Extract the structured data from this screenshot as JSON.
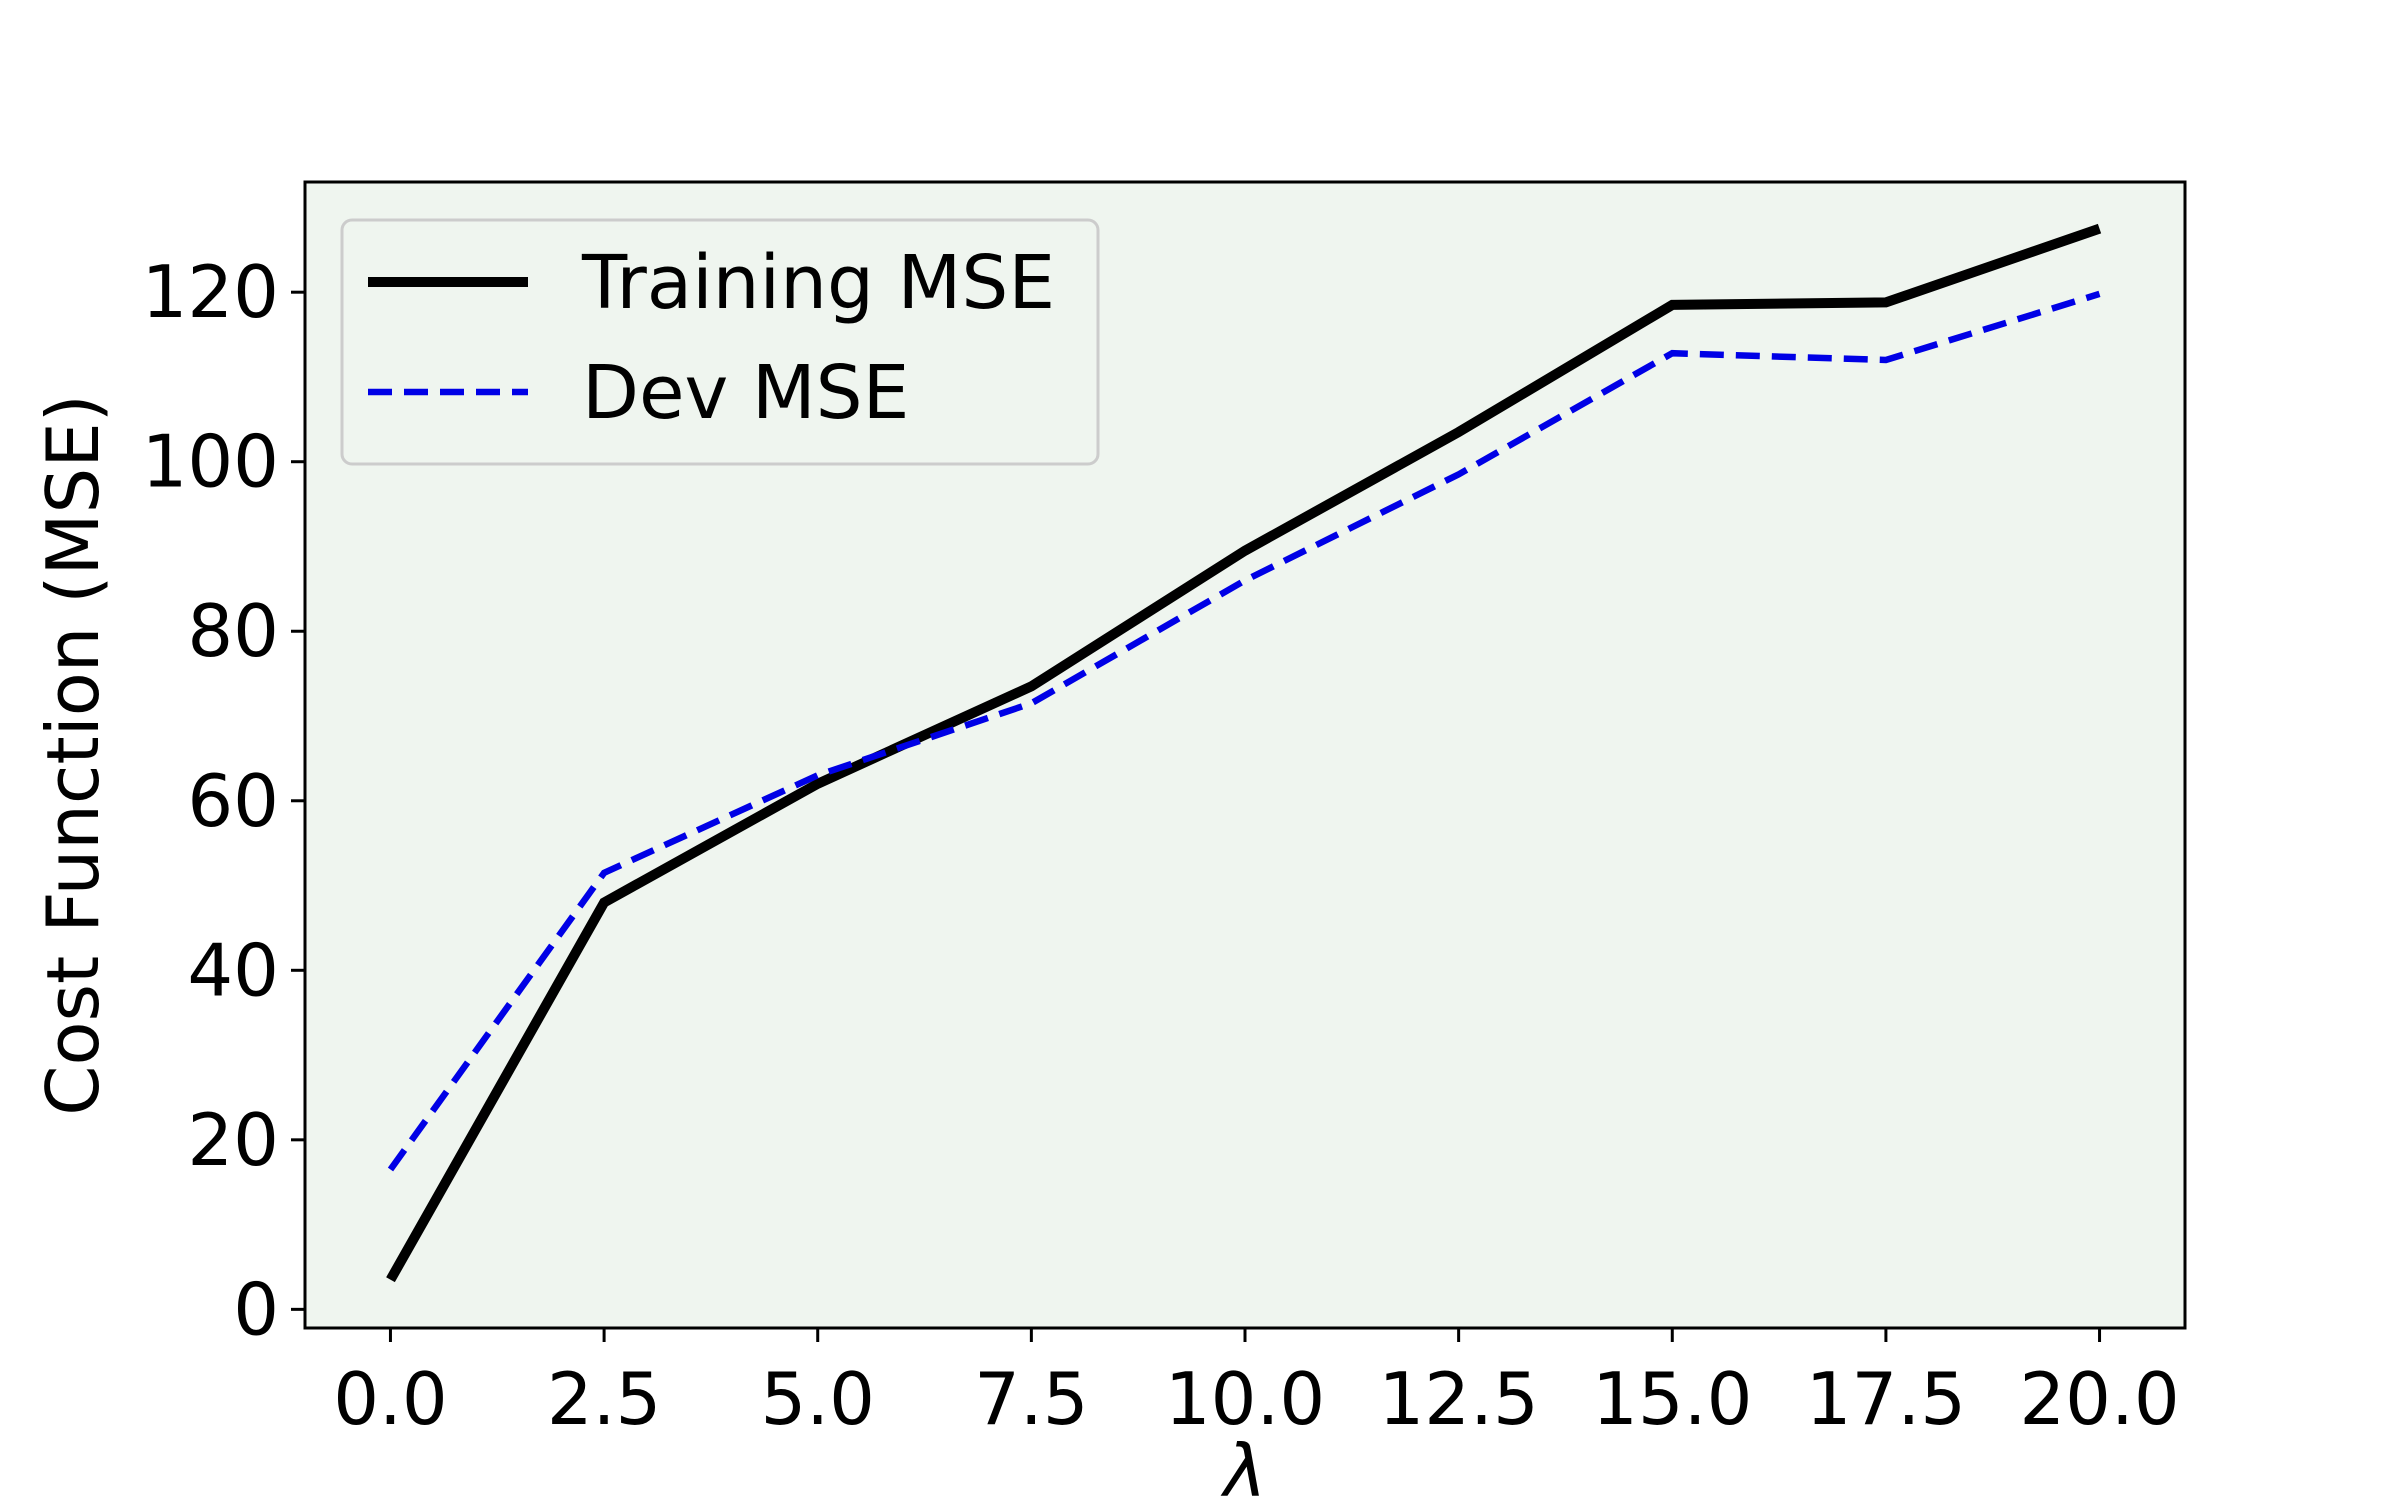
{
  "chart_data": {
    "type": "line",
    "title": "",
    "xlabel": "λ",
    "ylabel": "Cost Function (MSE)",
    "x": [
      0.0,
      2.5,
      5.0,
      7.5,
      10.0,
      12.5,
      15.0,
      17.5,
      20.0
    ],
    "xlim": [
      -1.0,
      21.0
    ],
    "ylim": [
      -2.2,
      133.0
    ],
    "xticks": [
      0.0,
      2.5,
      5.0,
      7.5,
      10.0,
      12.5,
      15.0,
      17.5,
      20.0
    ],
    "xtick_labels": [
      "0.0",
      "2.5",
      "5.0",
      "7.5",
      "10.0",
      "12.5",
      "15.0",
      "17.5",
      "20.0"
    ],
    "yticks": [
      0,
      20,
      40,
      60,
      80,
      100,
      120
    ],
    "ytick_labels": [
      "0",
      "20",
      "40",
      "60",
      "80",
      "100",
      "120"
    ],
    "grid": false,
    "legend_position": "top-left",
    "plot_background": "#eff5ef",
    "series": [
      {
        "name": "Training MSE",
        "values": [
          3.5,
          48.0,
          62.0,
          73.5,
          89.5,
          103.5,
          118.5,
          118.8,
          127.5
        ],
        "color": "#000000",
        "style": "solid"
      },
      {
        "name": "Dev MSE",
        "values": [
          16.5,
          51.5,
          63.0,
          71.5,
          86.0,
          98.5,
          112.8,
          112.0,
          119.8
        ],
        "color": "#0000e6",
        "style": "dashed"
      }
    ]
  }
}
